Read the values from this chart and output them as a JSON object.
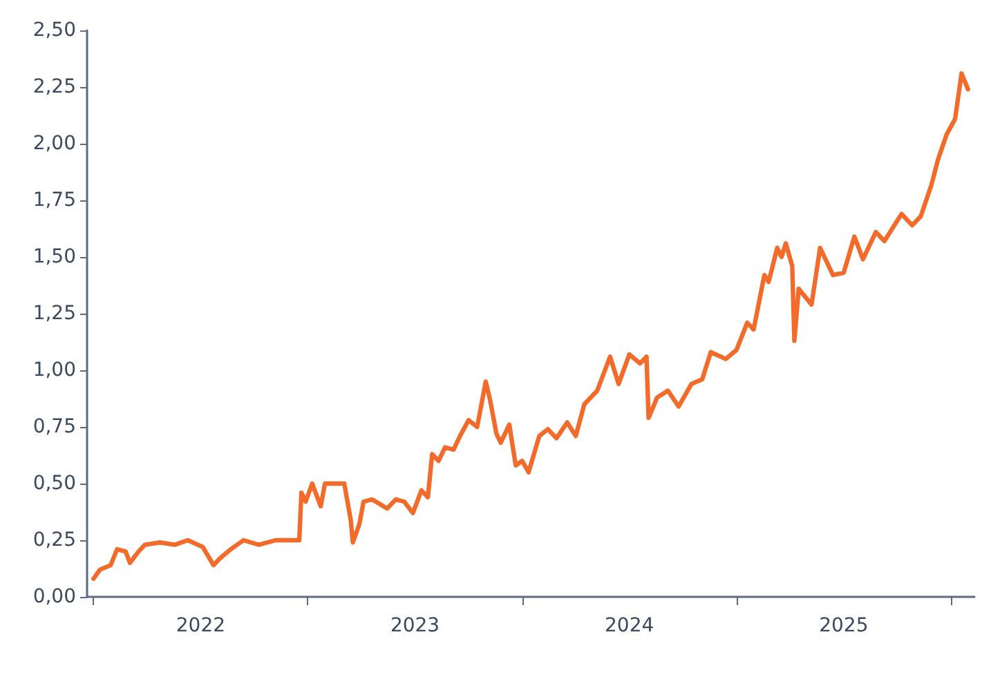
{
  "chart_data": {
    "type": "line",
    "x": [
      2022.0,
      2022.03,
      2022.08,
      2022.11,
      2022.15,
      2022.17,
      2022.21,
      2022.24,
      2022.31,
      2022.38,
      2022.44,
      2022.51,
      2022.56,
      2022.59,
      2022.64,
      2022.7,
      2022.77,
      2022.85,
      2022.96,
      2022.97,
      2022.99,
      2023.02,
      2023.06,
      2023.08,
      2023.17,
      2023.2,
      2023.21,
      2023.24,
      2023.26,
      2023.3,
      2023.37,
      2023.41,
      2023.45,
      2023.49,
      2023.53,
      2023.56,
      2023.58,
      2023.61,
      2023.64,
      2023.68,
      2023.71,
      2023.75,
      2023.79,
      2023.83,
      2023.85,
      2023.88,
      2023.9,
      2023.94,
      2023.97,
      2024.0,
      2024.03,
      2024.08,
      2024.12,
      2024.16,
      2024.21,
      2024.25,
      2024.29,
      2024.35,
      2024.41,
      2024.45,
      2024.5,
      2024.55,
      2024.58,
      2024.59,
      2024.63,
      2024.68,
      2024.73,
      2024.79,
      2024.84,
      2024.88,
      2024.95,
      2025.0,
      2025.05,
      2025.08,
      2025.13,
      2025.15,
      2025.19,
      2025.21,
      2025.23,
      2025.26,
      2025.27,
      2025.29,
      2025.35,
      2025.39,
      2025.45,
      2025.5,
      2025.55,
      2025.59,
      2025.65,
      2025.69,
      2025.77,
      2025.82,
      2025.86,
      2025.91,
      2025.94,
      2025.98,
      2026.02,
      2026.05,
      2026.08
    ],
    "series": [
      {
        "color": "#f26b2a",
        "values": [
          0.08,
          0.12,
          0.14,
          0.21,
          0.2,
          0.15,
          0.2,
          0.23,
          0.24,
          0.23,
          0.25,
          0.22,
          0.14,
          0.17,
          0.21,
          0.25,
          0.23,
          0.25,
          0.25,
          0.46,
          0.42,
          0.5,
          0.4,
          0.5,
          0.5,
          0.34,
          0.24,
          0.32,
          0.42,
          0.43,
          0.39,
          0.43,
          0.42,
          0.37,
          0.47,
          0.44,
          0.63,
          0.6,
          0.66,
          0.65,
          0.71,
          0.78,
          0.75,
          0.95,
          0.87,
          0.72,
          0.68,
          0.76,
          0.58,
          0.6,
          0.55,
          0.71,
          0.74,
          0.7,
          0.77,
          0.71,
          0.85,
          0.91,
          1.06,
          0.94,
          1.07,
          1.03,
          1.06,
          0.79,
          0.88,
          0.91,
          0.84,
          0.94,
          0.96,
          1.08,
          1.05,
          1.09,
          1.21,
          1.18,
          1.42,
          1.39,
          1.54,
          1.5,
          1.56,
          1.46,
          1.13,
          1.36,
          1.29,
          1.54,
          1.42,
          1.43,
          1.59,
          1.49,
          1.61,
          1.57,
          1.69,
          1.64,
          1.68,
          1.82,
          1.93,
          2.04,
          2.11,
          2.31,
          2.24
        ]
      }
    ],
    "xlim": [
      2021.97,
      2026.11
    ],
    "xticks": [
      {
        "value": 2022,
        "label": null
      },
      {
        "value": 2022.5,
        "label": "2022"
      },
      {
        "value": 2023,
        "label": null
      },
      {
        "value": 2023.5,
        "label": "2023"
      },
      {
        "value": 2024,
        "label": null
      },
      {
        "value": 2024.5,
        "label": "2024"
      },
      {
        "value": 2025,
        "label": null
      },
      {
        "value": 2025.5,
        "label": "2025"
      },
      {
        "value": 2026,
        "label": null
      }
    ],
    "ylim": [
      0,
      2.5
    ],
    "yticks": [
      {
        "value": 0,
        "label": "0,00"
      },
      {
        "value": 0.25,
        "label": "0,25"
      },
      {
        "value": 0.5,
        "label": "0,50"
      },
      {
        "value": 0.75,
        "label": "0,75"
      },
      {
        "value": 1,
        "label": "1,00"
      },
      {
        "value": 1.25,
        "label": "1,25"
      },
      {
        "value": 1.5,
        "label": "1,50"
      },
      {
        "value": 1.75,
        "label": "1,75"
      },
      {
        "value": 2,
        "label": "2,00"
      },
      {
        "value": 2.25,
        "label": "2,25"
      },
      {
        "value": 2.5,
        "label": "2,50"
      }
    ],
    "grid": false,
    "marker": "none",
    "line_style": "solid"
  }
}
